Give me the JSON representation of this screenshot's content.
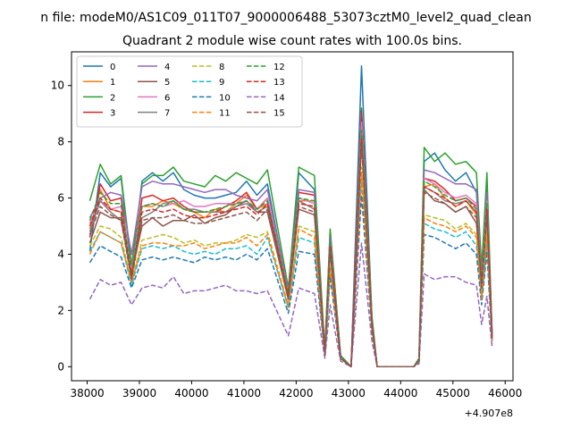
{
  "chart_data": {
    "type": "line",
    "suptitle": "n file: modeM0/AS1C09_011T07_9000006488_53073cztM0_level2_quad_clean",
    "title": "Quadrant 2 module wise count rates with 100.0s bins.",
    "xlabel": "",
    "ylabel": "",
    "x_offset_label": "+4.907e8",
    "xlim": [
      37700,
      46150
    ],
    "ylim": [
      -0.5,
      11.2
    ],
    "x_ticks": [
      38000,
      39000,
      40000,
      41000,
      42000,
      43000,
      44000,
      45000,
      46000
    ],
    "y_ticks": [
      0,
      2,
      4,
      6,
      8,
      10
    ],
    "x_tick_labels": [
      "38000",
      "39000",
      "40000",
      "41000",
      "42000",
      "43000",
      "44000",
      "45000",
      "46000"
    ],
    "y_tick_labels": [
      "0",
      "2",
      "4",
      "6",
      "8",
      "10"
    ],
    "grid": false,
    "legend": {
      "placement": "top-left",
      "columns": 4
    },
    "series": [
      {
        "name": "0",
        "color": "#1f77b4",
        "dash": false,
        "values": [
          4.1,
          6.9,
          6.4,
          6.7,
          3.5,
          6.6,
          6.9,
          6.6,
          6.9,
          6.3,
          6.1,
          6.0,
          6.0,
          6.1,
          6.2,
          6.6,
          6.1,
          6.5,
          2.6,
          6.9,
          6.3,
          0.5,
          4.8,
          0.4,
          0.0,
          10.7,
          1.7,
          0.0,
          0.0,
          0.0,
          0.0,
          0.0,
          0.2,
          7.3,
          7.6,
          7.0,
          6.6,
          6.9,
          6.2,
          3.3,
          6.3,
          1.2
        ]
      },
      {
        "name": "1",
        "color": "#ff7f0e",
        "dash": false,
        "values": [
          4.9,
          6.3,
          5.6,
          5.5,
          3.1,
          5.7,
          5.7,
          5.9,
          5.8,
          5.6,
          5.5,
          5.3,
          5.6,
          5.5,
          5.8,
          6.1,
          5.6,
          5.8,
          2.5,
          5.9,
          5.9,
          0.4,
          4.5,
          0.3,
          0.0,
          8.9,
          1.5,
          0.0,
          0.0,
          0.0,
          0.0,
          0.0,
          0.2,
          6.4,
          6.5,
          6.0,
          5.7,
          5.9,
          5.4,
          2.8,
          5.6,
          1.1
        ]
      },
      {
        "name": "2",
        "color": "#2ca02c",
        "dash": false,
        "values": [
          5.9,
          7.2,
          6.5,
          6.8,
          3.6,
          6.5,
          6.8,
          6.8,
          7.1,
          6.6,
          6.5,
          6.4,
          6.8,
          6.6,
          6.9,
          6.7,
          6.5,
          7.0,
          2.8,
          7.1,
          6.8,
          0.6,
          4.9,
          0.4,
          0.0,
          9.2,
          1.8,
          0.0,
          0.0,
          0.0,
          0.0,
          0.0,
          0.3,
          7.8,
          7.3,
          7.6,
          7.2,
          7.3,
          6.9,
          3.5,
          6.9,
          1.2
        ]
      },
      {
        "name": "3",
        "color": "#d62728",
        "dash": false,
        "values": [
          4.6,
          6.5,
          5.9,
          6.0,
          3.2,
          6.0,
          6.1,
          5.9,
          6.0,
          5.7,
          5.5,
          5.5,
          5.5,
          5.7,
          5.9,
          6.2,
          5.6,
          6.0,
          2.5,
          6.2,
          6.1,
          0.5,
          4.5,
          0.3,
          0.0,
          9.1,
          1.6,
          0.0,
          0.0,
          0.0,
          0.0,
          0.0,
          0.2,
          6.7,
          6.6,
          6.3,
          5.9,
          6.0,
          5.7,
          3.0,
          5.9,
          1.1
        ]
      },
      {
        "name": "4",
        "color": "#9467bd",
        "dash": false,
        "values": [
          5.3,
          6.0,
          6.2,
          6.1,
          4.0,
          6.4,
          6.6,
          6.5,
          6.5,
          6.4,
          6.3,
          6.2,
          6.3,
          6.3,
          6.1,
          6.0,
          5.9,
          6.3,
          2.7,
          6.3,
          6.2,
          0.5,
          4.6,
          0.3,
          0.0,
          8.5,
          1.6,
          0.0,
          0.0,
          0.0,
          0.0,
          0.0,
          0.2,
          7.0,
          6.9,
          6.7,
          6.5,
          6.5,
          6.3,
          3.1,
          6.2,
          1.0
        ]
      },
      {
        "name": "5",
        "color": "#8c564b",
        "dash": false,
        "values": [
          4.4,
          5.5,
          5.3,
          5.3,
          3.3,
          5.0,
          5.3,
          5.0,
          5.2,
          5.2,
          5.4,
          5.1,
          5.3,
          5.4,
          5.7,
          5.9,
          5.5,
          5.5,
          2.4,
          5.6,
          5.4,
          0.4,
          4.1,
          0.3,
          0.0,
          8.2,
          1.5,
          0.0,
          0.0,
          0.0,
          0.0,
          0.0,
          0.2,
          6.3,
          5.9,
          5.8,
          5.5,
          5.7,
          5.1,
          2.8,
          5.4,
          1.0
        ]
      },
      {
        "name": "6",
        "color": "#e377c2",
        "dash": false,
        "values": [
          5.1,
          5.9,
          5.6,
          5.7,
          3.4,
          5.7,
          5.8,
          5.7,
          5.8,
          5.9,
          5.7,
          5.7,
          5.8,
          5.8,
          5.8,
          5.9,
          5.6,
          6.0,
          2.6,
          6.0,
          5.8,
          0.5,
          4.4,
          0.3,
          0.0,
          8.7,
          1.5,
          0.0,
          0.0,
          0.0,
          0.0,
          0.0,
          0.2,
          6.7,
          6.5,
          6.2,
          6.0,
          6.1,
          5.8,
          3.0,
          5.9,
          1.1
        ]
      },
      {
        "name": "7",
        "color": "#7f7f7f",
        "dash": false,
        "values": [
          4.8,
          5.9,
          5.5,
          5.2,
          3.2,
          5.3,
          5.5,
          5.8,
          5.9,
          5.6,
          5.6,
          5.5,
          5.5,
          5.5,
          5.7,
          5.8,
          5.5,
          5.7,
          2.5,
          5.9,
          5.6,
          0.5,
          4.3,
          0.3,
          0.0,
          8.3,
          1.5,
          0.0,
          0.0,
          0.0,
          0.0,
          0.0,
          0.2,
          6.4,
          6.2,
          5.9,
          5.8,
          5.9,
          5.5,
          2.9,
          5.6,
          1.0
        ]
      },
      {
        "name": "8",
        "color": "#bcbd22",
        "dash": true,
        "values": [
          4.3,
          5.0,
          4.9,
          4.6,
          3.0,
          4.5,
          4.6,
          4.7,
          4.6,
          4.4,
          4.5,
          4.3,
          4.4,
          4.4,
          4.5,
          4.7,
          4.6,
          4.8,
          2.2,
          5.0,
          4.8,
          0.4,
          3.6,
          0.3,
          0.0,
          7.1,
          1.3,
          0.0,
          0.0,
          0.0,
          0.0,
          0.0,
          0.2,
          5.4,
          5.3,
          5.2,
          4.9,
          5.1,
          4.7,
          2.5,
          4.9,
          0.9
        ]
      },
      {
        "name": "9",
        "color": "#17becf",
        "dash": true,
        "values": [
          4.1,
          4.8,
          4.6,
          4.4,
          2.9,
          4.2,
          4.3,
          4.2,
          4.3,
          4.1,
          4.0,
          4.1,
          4.0,
          4.2,
          4.2,
          4.3,
          4.0,
          4.6,
          2.1,
          4.6,
          4.4,
          0.4,
          3.4,
          0.3,
          0.0,
          6.6,
          1.3,
          0.0,
          0.0,
          0.0,
          0.0,
          0.0,
          0.2,
          5.1,
          4.9,
          4.8,
          4.6,
          4.8,
          4.3,
          2.4,
          4.4,
          0.9
        ]
      },
      {
        "name": "10",
        "color": "#1f77b4",
        "dash": true,
        "values": [
          3.7,
          4.3,
          4.1,
          3.9,
          2.8,
          3.8,
          3.9,
          3.8,
          3.9,
          3.8,
          3.7,
          3.9,
          3.8,
          3.9,
          3.8,
          4.0,
          3.8,
          4.2,
          1.9,
          4.1,
          4.0,
          0.4,
          3.2,
          0.3,
          0.0,
          6.1,
          1.2,
          0.0,
          0.0,
          0.0,
          0.0,
          0.0,
          0.2,
          4.7,
          4.6,
          4.4,
          4.2,
          4.4,
          4.0,
          2.2,
          4.1,
          0.8
        ]
      },
      {
        "name": "11",
        "color": "#ff7f0e",
        "dash": true,
        "values": [
          4.0,
          4.8,
          4.6,
          4.4,
          3.0,
          4.3,
          4.4,
          4.4,
          4.3,
          4.3,
          4.4,
          4.2,
          4.3,
          4.4,
          4.4,
          4.6,
          4.3,
          4.7,
          2.1,
          4.9,
          4.6,
          0.4,
          3.5,
          0.3,
          0.0,
          6.9,
          1.3,
          0.0,
          0.0,
          0.0,
          0.0,
          0.0,
          0.2,
          5.3,
          5.1,
          5.0,
          4.8,
          5.0,
          4.6,
          2.4,
          4.7,
          0.9
        ]
      },
      {
        "name": "12",
        "color": "#2ca02c",
        "dash": true,
        "values": [
          5.2,
          6.2,
          5.8,
          5.8,
          3.3,
          5.7,
          5.8,
          5.7,
          5.9,
          5.6,
          5.5,
          5.5,
          5.6,
          5.7,
          5.8,
          5.9,
          5.6,
          5.9,
          2.6,
          6.0,
          5.9,
          0.5,
          4.4,
          0.3,
          0.0,
          8.4,
          1.5,
          0.0,
          0.0,
          0.0,
          0.0,
          0.0,
          0.2,
          6.6,
          6.4,
          6.1,
          5.9,
          6.0,
          5.6,
          3.0,
          5.8,
          1.1
        ]
      },
      {
        "name": "13",
        "color": "#d62728",
        "dash": true,
        "values": [
          5.0,
          6.0,
          5.6,
          5.5,
          3.2,
          5.5,
          5.6,
          5.5,
          5.6,
          5.4,
          5.3,
          5.3,
          5.4,
          5.5,
          5.6,
          5.7,
          5.4,
          5.8,
          2.5,
          5.8,
          5.7,
          0.5,
          4.3,
          0.3,
          0.0,
          8.1,
          1.5,
          0.0,
          0.0,
          0.0,
          0.0,
          0.0,
          0.2,
          6.4,
          6.2,
          6.0,
          5.7,
          5.9,
          5.5,
          2.9,
          5.6,
          1.0
        ]
      },
      {
        "name": "14",
        "color": "#9467bd",
        "dash": true,
        "values": [
          2.4,
          3.1,
          2.9,
          3.0,
          2.2,
          2.8,
          2.9,
          2.8,
          3.2,
          2.6,
          2.7,
          2.7,
          2.8,
          2.9,
          2.7,
          2.7,
          2.6,
          2.7,
          1.1,
          2.8,
          2.6,
          0.3,
          2.2,
          0.2,
          0.0,
          4.4,
          0.9,
          0.0,
          0.0,
          0.0,
          0.0,
          0.0,
          0.1,
          3.3,
          3.1,
          3.2,
          3.2,
          3.0,
          2.9,
          1.5,
          2.5,
          0.7
        ]
      },
      {
        "name": "15",
        "color": "#8c564b",
        "dash": true,
        "values": [
          4.7,
          5.7,
          5.4,
          5.2,
          3.1,
          5.2,
          5.3,
          5.3,
          5.4,
          5.2,
          5.1,
          5.1,
          5.2,
          5.3,
          5.4,
          5.5,
          5.2,
          5.6,
          2.4,
          5.7,
          5.5,
          0.4,
          4.1,
          0.3,
          0.0,
          7.9,
          1.4,
          0.0,
          0.0,
          0.0,
          0.0,
          0.0,
          0.2,
          6.2,
          6.0,
          5.8,
          5.5,
          5.7,
          5.3,
          2.8,
          5.4,
          1.0
        ]
      }
    ],
    "x": [
      38050,
      38250,
      38450,
      38650,
      38850,
      39050,
      39250,
      39450,
      39650,
      39850,
      40050,
      40250,
      40450,
      40650,
      40850,
      41050,
      41250,
      41450,
      41850,
      42050,
      42350,
      42550,
      42650,
      42850,
      43050,
      43250,
      43450,
      43550,
      43750,
      43950,
      44150,
      44250,
      44350,
      44450,
      44650,
      44850,
      45050,
      45250,
      45450,
      45550,
      45650,
      45750
    ]
  }
}
